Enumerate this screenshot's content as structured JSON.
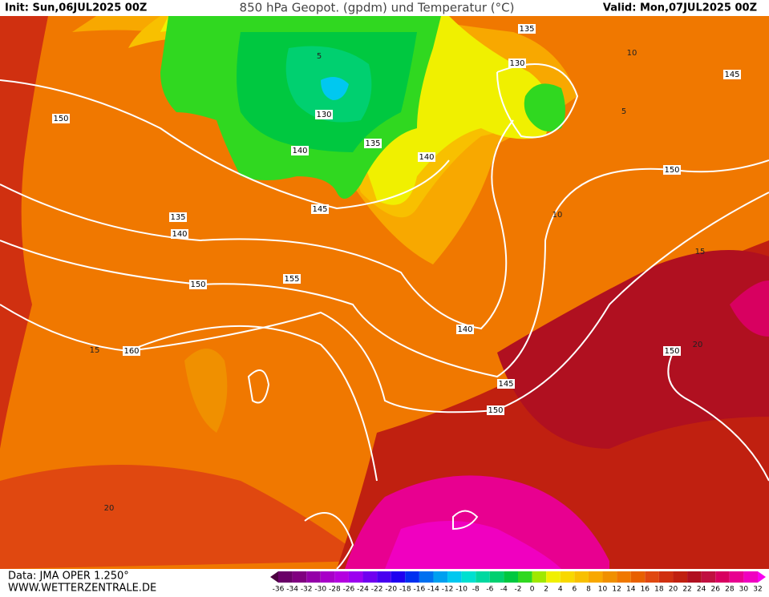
{
  "header": {
    "init": "Init: Sun,06JUL2025 00Z",
    "title": "850 hPa Geopot. (gpdm) und Temperatur (°C)",
    "valid": "Valid: Mon,07JUL2025 00Z"
  },
  "geopotential_labels": [
    135,
    130,
    145,
    150,
    130,
    140,
    135,
    140,
    150,
    145,
    135,
    140,
    150,
    155,
    140,
    160,
    150,
    145,
    150
  ],
  "temperature_labels": [
    10,
    5,
    5,
    10,
    15,
    15,
    20,
    20
  ],
  "footer": {
    "data": "Data: JMA OPER 1.250°",
    "site": "WWW.WETTERZENTRALE.DE"
  },
  "colorbar": {
    "labels": [
      -36,
      -34,
      -32,
      -30,
      -28,
      -26,
      -24,
      -22,
      -20,
      -18,
      -16,
      -14,
      -12,
      -10,
      -8,
      -6,
      -4,
      -2,
      0,
      2,
      4,
      6,
      8,
      10,
      12,
      14,
      16,
      18,
      20,
      22,
      24,
      26,
      28,
      30,
      32
    ],
    "colors": [
      "#4b0040",
      "#6a0068",
      "#800080",
      "#9400a8",
      "#a800c8",
      "#b400e0",
      "#9c00f0",
      "#7000f0",
      "#4800f0",
      "#2000f0",
      "#0030f0",
      "#0070f0",
      "#00a0f0",
      "#00c8f0",
      "#00e0d0",
      "#00d8a0",
      "#00d070",
      "#00c840",
      "#30d820",
      "#a0e800",
      "#f0f000",
      "#f8d800",
      "#f8c000",
      "#f8a800",
      "#f09000",
      "#f07800",
      "#e86000",
      "#e04810",
      "#d03010",
      "#c02010",
      "#b01020",
      "#c01040",
      "#d80060",
      "#e80090",
      "#f000c0",
      "#f800f0"
    ]
  }
}
